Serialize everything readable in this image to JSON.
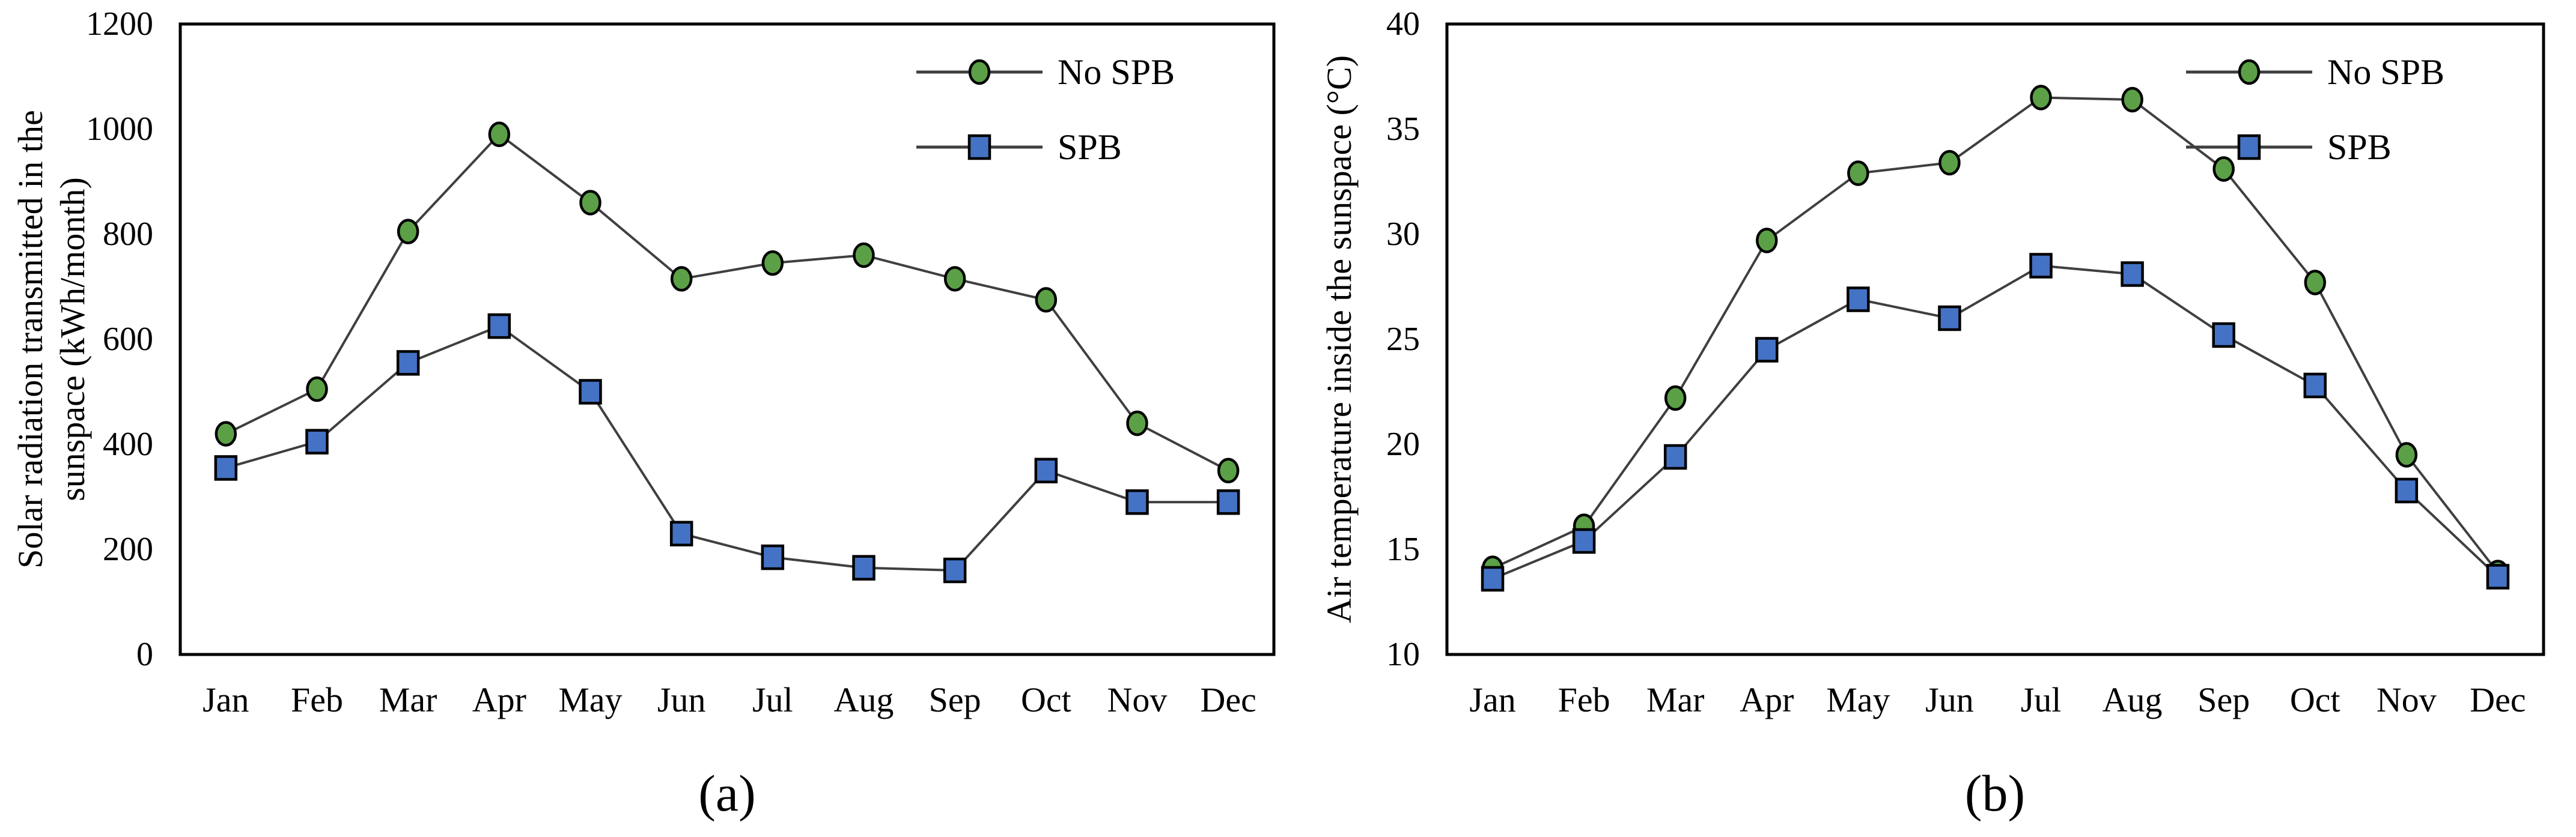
{
  "figure": {
    "background": "#ffffff",
    "panels": [
      "(a)",
      "(b)"
    ]
  },
  "colors": {
    "no_spb_marker": "#5ba046",
    "spb_marker": "#4472c4",
    "series_line": "#3f3f3f",
    "axis": "#000000",
    "marker_outline": "#000000",
    "text": "#000000"
  },
  "chart_data": [
    {
      "type": "line",
      "panel_label": "(a)",
      "title": "",
      "ylabel_lines": [
        "Solar radiation transmitted in the",
        "sunspace (kWh/month)"
      ],
      "xlabel": "",
      "categories": [
        "Jan",
        "Feb",
        "Mar",
        "Apr",
        "May",
        "Jun",
        "Jul",
        "Aug",
        "Sep",
        "Oct",
        "Nov",
        "Dec"
      ],
      "ylim": [
        0,
        1200
      ],
      "ytick_step": 200,
      "grid": false,
      "legend_position": "top-right-inside",
      "series": [
        {
          "name": "No SPB",
          "marker": "circle",
          "color": "#5ba046",
          "values": [
            420,
            505,
            805,
            990,
            860,
            715,
            745,
            760,
            715,
            675,
            440,
            350
          ]
        },
        {
          "name": "SPB",
          "marker": "square",
          "color": "#4472c4",
          "values": [
            355,
            405,
            555,
            625,
            500,
            230,
            185,
            165,
            160,
            350,
            290,
            290
          ]
        }
      ]
    },
    {
      "type": "line",
      "panel_label": "(b)",
      "title": "",
      "ylabel_lines": [
        "Air temperature inside the sunspace (°C)"
      ],
      "xlabel": "",
      "categories": [
        "Jan",
        "Feb",
        "Mar",
        "Apr",
        "May",
        "Jun",
        "Jul",
        "Aug",
        "Sep",
        "Oct",
        "Nov",
        "Dec"
      ],
      "ylim": [
        10,
        40
      ],
      "ytick_step": 5,
      "grid": false,
      "legend_position": "top-right-inside",
      "series": [
        {
          "name": "No SPB",
          "marker": "circle",
          "color": "#5ba046",
          "values": [
            14.1,
            16.1,
            22.2,
            29.7,
            32.9,
            33.4,
            36.5,
            36.4,
            33.1,
            27.7,
            19.5,
            13.9
          ]
        },
        {
          "name": "SPB",
          "marker": "square",
          "color": "#4472c4",
          "values": [
            13.6,
            15.4,
            19.4,
            24.5,
            26.9,
            26.0,
            28.5,
            28.1,
            25.2,
            22.8,
            17.8,
            13.7
          ]
        }
      ]
    }
  ]
}
